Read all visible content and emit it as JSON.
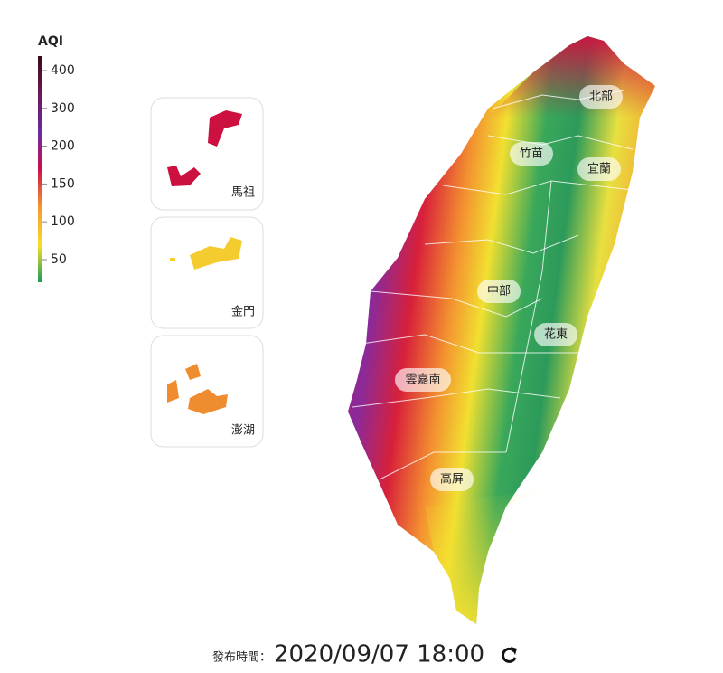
{
  "legend": {
    "title": "AQI",
    "ticks": [
      400,
      300,
      200,
      150,
      100,
      50
    ]
  },
  "islands": [
    {
      "label": "馬祖"
    },
    {
      "label": "金門"
    },
    {
      "label": "澎湖"
    }
  ],
  "regions": [
    {
      "label": "北部"
    },
    {
      "label": "竹苗"
    },
    {
      "label": "宜蘭"
    },
    {
      "label": "中部"
    },
    {
      "label": "花東"
    },
    {
      "label": "雲嘉南"
    },
    {
      "label": "高屏"
    }
  ],
  "footer": {
    "caption": "發布時間：",
    "time": "2020/09/07 18:00"
  }
}
